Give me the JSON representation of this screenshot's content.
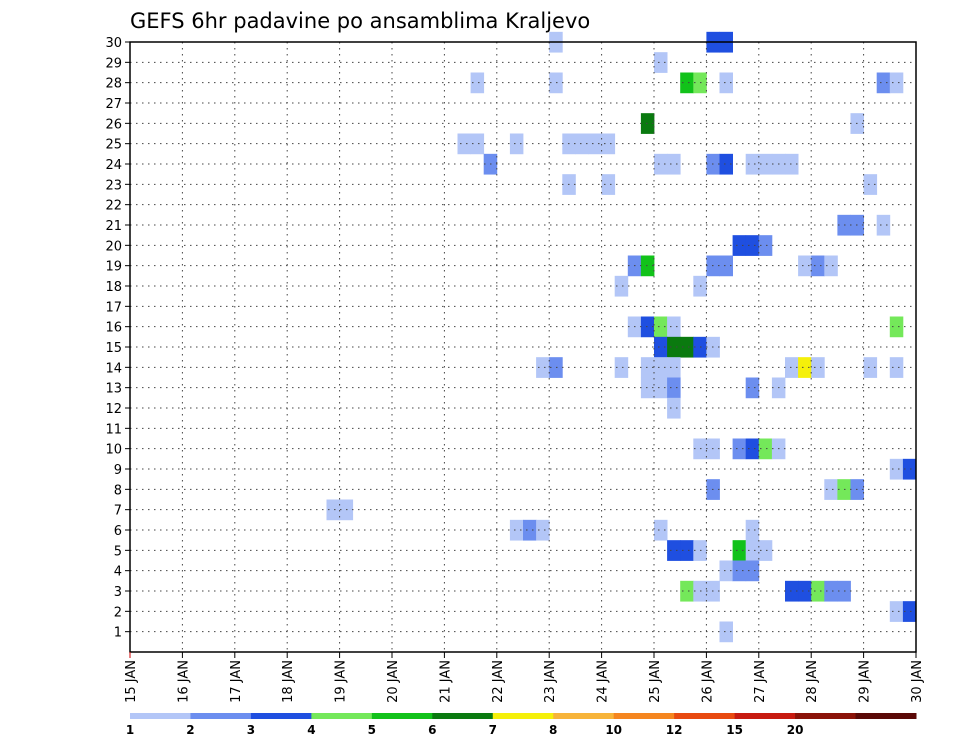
{
  "chart_data": {
    "type": "heatmap",
    "title": "GEFS 6hr padavine po ansamblima Kraljevo",
    "xlabel": "",
    "ylabel": "",
    "x_start_day": 15,
    "x_end_day": 30,
    "steps_per_day": 4,
    "xlim": [
      15,
      30
    ],
    "x_tick_labels": [
      "15 JAN",
      "16 JAN",
      "17 JAN",
      "18 JAN",
      "19 JAN",
      "20 JAN",
      "21 JAN",
      "22 JAN",
      "23 JAN",
      "24 JAN",
      "25 JAN",
      "26 JAN",
      "27 JAN",
      "28 JAN",
      "29 JAN",
      "30 JAN"
    ],
    "ylim": [
      0,
      30
    ],
    "y_tick_labels": [
      "1",
      "2",
      "3",
      "4",
      "5",
      "6",
      "7",
      "8",
      "9",
      "10",
      "11",
      "12",
      "13",
      "14",
      "15",
      "16",
      "17",
      "18",
      "19",
      "20",
      "21",
      "22",
      "23",
      "24",
      "25",
      "26",
      "27",
      "28",
      "29",
      "30"
    ],
    "grid": true,
    "colorbar": {
      "labels": [
        "1",
        "2",
        "3",
        "4",
        "5",
        "6",
        "7",
        "8",
        "10",
        "12",
        "15",
        "20"
      ],
      "colors": [
        "#b3c6f7",
        "#6c8eef",
        "#1f4fe0",
        "#74e85a",
        "#12c21a",
        "#0a7a0f",
        "#f5f00a",
        "#f7b43a",
        "#f5861f",
        "#e84a10",
        "#c71a10",
        "#8a1208",
        "#5a0806"
      ]
    },
    "cells": [
      {
        "member": 30,
        "day": 23.0,
        "cat": 0
      },
      {
        "member": 30,
        "day": 26.0,
        "cat": 2
      },
      {
        "member": 30,
        "day": 26.25,
        "cat": 2
      },
      {
        "member": 29,
        "day": 25.0,
        "cat": 0
      },
      {
        "member": 28,
        "day": 21.5,
        "cat": 0
      },
      {
        "member": 28,
        "day": 23.0,
        "cat": 0
      },
      {
        "member": 28,
        "day": 25.5,
        "cat": 4
      },
      {
        "member": 28,
        "day": 25.75,
        "cat": 3
      },
      {
        "member": 28,
        "day": 26.25,
        "cat": 0
      },
      {
        "member": 28,
        "day": 29.25,
        "cat": 1
      },
      {
        "member": 28,
        "day": 29.5,
        "cat": 0
      },
      {
        "member": 26,
        "day": 24.75,
        "cat": 5
      },
      {
        "member": 26,
        "day": 28.75,
        "cat": 0
      },
      {
        "member": 25,
        "day": 21.25,
        "cat": 0
      },
      {
        "member": 25,
        "day": 21.5,
        "cat": 0
      },
      {
        "member": 25,
        "day": 22.25,
        "cat": 0
      },
      {
        "member": 25,
        "day": 23.25,
        "cat": 0
      },
      {
        "member": 25,
        "day": 23.5,
        "cat": 0
      },
      {
        "member": 25,
        "day": 23.75,
        "cat": 0
      },
      {
        "member": 25,
        "day": 24.0,
        "cat": 0
      },
      {
        "member": 24,
        "day": 21.75,
        "cat": 1
      },
      {
        "member": 24,
        "day": 25.0,
        "cat": 0
      },
      {
        "member": 24,
        "day": 25.25,
        "cat": 0
      },
      {
        "member": 24,
        "day": 26.0,
        "cat": 1
      },
      {
        "member": 24,
        "day": 26.25,
        "cat": 2
      },
      {
        "member": 24,
        "day": 26.75,
        "cat": 0
      },
      {
        "member": 24,
        "day": 27.0,
        "cat": 0
      },
      {
        "member": 24,
        "day": 27.25,
        "cat": 0
      },
      {
        "member": 24,
        "day": 27.5,
        "cat": 0
      },
      {
        "member": 23,
        "day": 23.25,
        "cat": 0
      },
      {
        "member": 23,
        "day": 24.0,
        "cat": 0
      },
      {
        "member": 23,
        "day": 29.0,
        "cat": 0
      },
      {
        "member": 21,
        "day": 28.5,
        "cat": 1
      },
      {
        "member": 21,
        "day": 28.75,
        "cat": 1
      },
      {
        "member": 21,
        "day": 29.25,
        "cat": 0
      },
      {
        "member": 20,
        "day": 26.5,
        "cat": 2
      },
      {
        "member": 20,
        "day": 26.75,
        "cat": 2
      },
      {
        "member": 20,
        "day": 27.0,
        "cat": 1
      },
      {
        "member": 19,
        "day": 24.5,
        "cat": 1
      },
      {
        "member": 19,
        "day": 24.75,
        "cat": 4
      },
      {
        "member": 19,
        "day": 26.0,
        "cat": 1
      },
      {
        "member": 19,
        "day": 26.25,
        "cat": 1
      },
      {
        "member": 19,
        "day": 27.75,
        "cat": 0
      },
      {
        "member": 19,
        "day": 28.0,
        "cat": 1
      },
      {
        "member": 19,
        "day": 28.25,
        "cat": 0
      },
      {
        "member": 18,
        "day": 24.25,
        "cat": 0
      },
      {
        "member": 18,
        "day": 25.75,
        "cat": 0
      },
      {
        "member": 16,
        "day": 24.5,
        "cat": 0
      },
      {
        "member": 16,
        "day": 24.75,
        "cat": 2
      },
      {
        "member": 16,
        "day": 25.0,
        "cat": 3
      },
      {
        "member": 16,
        "day": 25.25,
        "cat": 0
      },
      {
        "member": 16,
        "day": 29.5,
        "cat": 3
      },
      {
        "member": 15,
        "day": 25.0,
        "cat": 2
      },
      {
        "member": 15,
        "day": 25.25,
        "cat": 5
      },
      {
        "member": 15,
        "day": 25.5,
        "cat": 5
      },
      {
        "member": 15,
        "day": 25.75,
        "cat": 2
      },
      {
        "member": 15,
        "day": 26.0,
        "cat": 0
      },
      {
        "member": 14,
        "day": 22.75,
        "cat": 0
      },
      {
        "member": 14,
        "day": 23.0,
        "cat": 1
      },
      {
        "member": 14,
        "day": 24.25,
        "cat": 0
      },
      {
        "member": 14,
        "day": 24.75,
        "cat": 0
      },
      {
        "member": 14,
        "day": 25.0,
        "cat": 0
      },
      {
        "member": 14,
        "day": 25.25,
        "cat": 0
      },
      {
        "member": 14,
        "day": 27.5,
        "cat": 0
      },
      {
        "member": 14,
        "day": 27.75,
        "cat": 6
      },
      {
        "member": 14,
        "day": 28.0,
        "cat": 0
      },
      {
        "member": 14,
        "day": 29.0,
        "cat": 0
      },
      {
        "member": 14,
        "day": 29.5,
        "cat": 0
      },
      {
        "member": 13,
        "day": 24.75,
        "cat": 0
      },
      {
        "member": 13,
        "day": 25.0,
        "cat": 0
      },
      {
        "member": 13,
        "day": 25.25,
        "cat": 1
      },
      {
        "member": 13,
        "day": 26.75,
        "cat": 1
      },
      {
        "member": 13,
        "day": 27.25,
        "cat": 0
      },
      {
        "member": 12,
        "day": 25.25,
        "cat": 0
      },
      {
        "member": 10,
        "day": 25.75,
        "cat": 0
      },
      {
        "member": 10,
        "day": 26.0,
        "cat": 0
      },
      {
        "member": 10,
        "day": 26.5,
        "cat": 1
      },
      {
        "member": 10,
        "day": 26.75,
        "cat": 2
      },
      {
        "member": 10,
        "day": 27.0,
        "cat": 3
      },
      {
        "member": 10,
        "day": 27.25,
        "cat": 0
      },
      {
        "member": 9,
        "day": 29.5,
        "cat": 0
      },
      {
        "member": 9,
        "day": 29.75,
        "cat": 2
      },
      {
        "member": 8,
        "day": 26.0,
        "cat": 1
      },
      {
        "member": 8,
        "day": 28.25,
        "cat": 0
      },
      {
        "member": 8,
        "day": 28.5,
        "cat": 3
      },
      {
        "member": 8,
        "day": 28.75,
        "cat": 1
      },
      {
        "member": 7,
        "day": 18.75,
        "cat": 0
      },
      {
        "member": 7,
        "day": 19.0,
        "cat": 0
      },
      {
        "member": 6,
        "day": 22.25,
        "cat": 0
      },
      {
        "member": 6,
        "day": 22.5,
        "cat": 1
      },
      {
        "member": 6,
        "day": 22.75,
        "cat": 0
      },
      {
        "member": 6,
        "day": 25.0,
        "cat": 0
      },
      {
        "member": 6,
        "day": 26.75,
        "cat": 0
      },
      {
        "member": 5,
        "day": 25.25,
        "cat": 2
      },
      {
        "member": 5,
        "day": 25.5,
        "cat": 2
      },
      {
        "member": 5,
        "day": 25.75,
        "cat": 0
      },
      {
        "member": 5,
        "day": 26.5,
        "cat": 4
      },
      {
        "member": 5,
        "day": 26.75,
        "cat": 0
      },
      {
        "member": 5,
        "day": 27.0,
        "cat": 0
      },
      {
        "member": 4,
        "day": 26.25,
        "cat": 0
      },
      {
        "member": 4,
        "day": 26.5,
        "cat": 1
      },
      {
        "member": 4,
        "day": 26.75,
        "cat": 1
      },
      {
        "member": 3,
        "day": 25.5,
        "cat": 3
      },
      {
        "member": 3,
        "day": 25.75,
        "cat": 0
      },
      {
        "member": 3,
        "day": 26.0,
        "cat": 0
      },
      {
        "member": 3,
        "day": 27.5,
        "cat": 2
      },
      {
        "member": 3,
        "day": 27.75,
        "cat": 2
      },
      {
        "member": 3,
        "day": 28.0,
        "cat": 3
      },
      {
        "member": 3,
        "day": 28.25,
        "cat": 1
      },
      {
        "member": 3,
        "day": 28.5,
        "cat": 1
      },
      {
        "member": 2,
        "day": 29.5,
        "cat": 0
      },
      {
        "member": 2,
        "day": 29.75,
        "cat": 2
      },
      {
        "member": 1,
        "day": 26.25,
        "cat": 0
      }
    ]
  }
}
